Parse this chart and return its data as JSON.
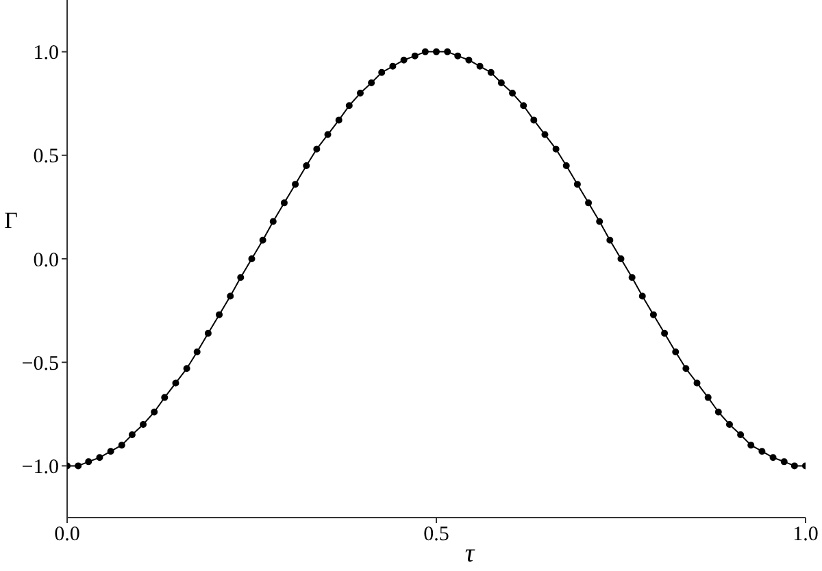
{
  "chart_data": {
    "type": "line",
    "xlabel": "τ",
    "ylabel": "Γ",
    "x": [
      0,
      0.015,
      0.029,
      0.044,
      0.059,
      0.074,
      0.088,
      0.103,
      0.118,
      0.132,
      0.147,
      0.162,
      0.176,
      0.191,
      0.206,
      0.221,
      0.235,
      0.25,
      0.265,
      0.279,
      0.294,
      0.309,
      0.324,
      0.338,
      0.353,
      0.368,
      0.382,
      0.397,
      0.412,
      0.426,
      0.441,
      0.456,
      0.471,
      0.485,
      0.5,
      0.515,
      0.529,
      0.544,
      0.559,
      0.574,
      0.588,
      0.603,
      0.618,
      0.632,
      0.647,
      0.662,
      0.676,
      0.691,
      0.706,
      0.721,
      0.735,
      0.75,
      0.765,
      0.779,
      0.794,
      0.809,
      0.824,
      0.838,
      0.853,
      0.868,
      0.882,
      0.897,
      0.912,
      0.926,
      0.941,
      0.956,
      0.971,
      0.985,
      1
    ],
    "series": [
      {
        "color": "#000000",
        "values": [
          -1,
          -1,
          -0.98,
          -0.96,
          -0.93,
          -0.9,
          -0.85,
          -0.8,
          -0.74,
          -0.67,
          -0.6,
          -0.53,
          -0.45,
          -0.36,
          -0.27,
          -0.18,
          -0.09,
          0,
          0.09,
          0.18,
          0.27,
          0.36,
          0.45,
          0.53,
          0.6,
          0.67,
          0.74,
          0.8,
          0.85,
          0.9,
          0.93,
          0.96,
          0.98,
          1,
          1,
          1,
          0.98,
          0.96,
          0.93,
          0.9,
          0.85,
          0.8,
          0.74,
          0.67,
          0.6,
          0.53,
          0.45,
          0.36,
          0.27,
          0.18,
          0.09,
          0,
          -0.09,
          -0.18,
          -0.27,
          -0.36,
          -0.45,
          -0.53,
          -0.6,
          -0.67,
          -0.74,
          -0.8,
          -0.85,
          -0.9,
          -0.93,
          -0.96,
          -0.98,
          -1,
          -1
        ]
      }
    ],
    "xlim": [
      0,
      1
    ],
    "xticks": [
      {
        "value": 0,
        "label": "0.0"
      },
      {
        "value": 0.5,
        "label": "0.5"
      },
      {
        "value": 1,
        "label": "1.0"
      }
    ],
    "ylim": [
      -1.25,
      1.25
    ],
    "yticks": [
      {
        "value": -1,
        "label": "−1.0"
      },
      {
        "value": -0.5,
        "label": "−0.5"
      },
      {
        "value": 0,
        "label": "0.0"
      },
      {
        "value": 0.5,
        "label": "0.5"
      },
      {
        "value": 1,
        "label": "1.0"
      }
    ],
    "marker": "circle",
    "line_style": "solid",
    "grid": false,
    "legend": false
  }
}
